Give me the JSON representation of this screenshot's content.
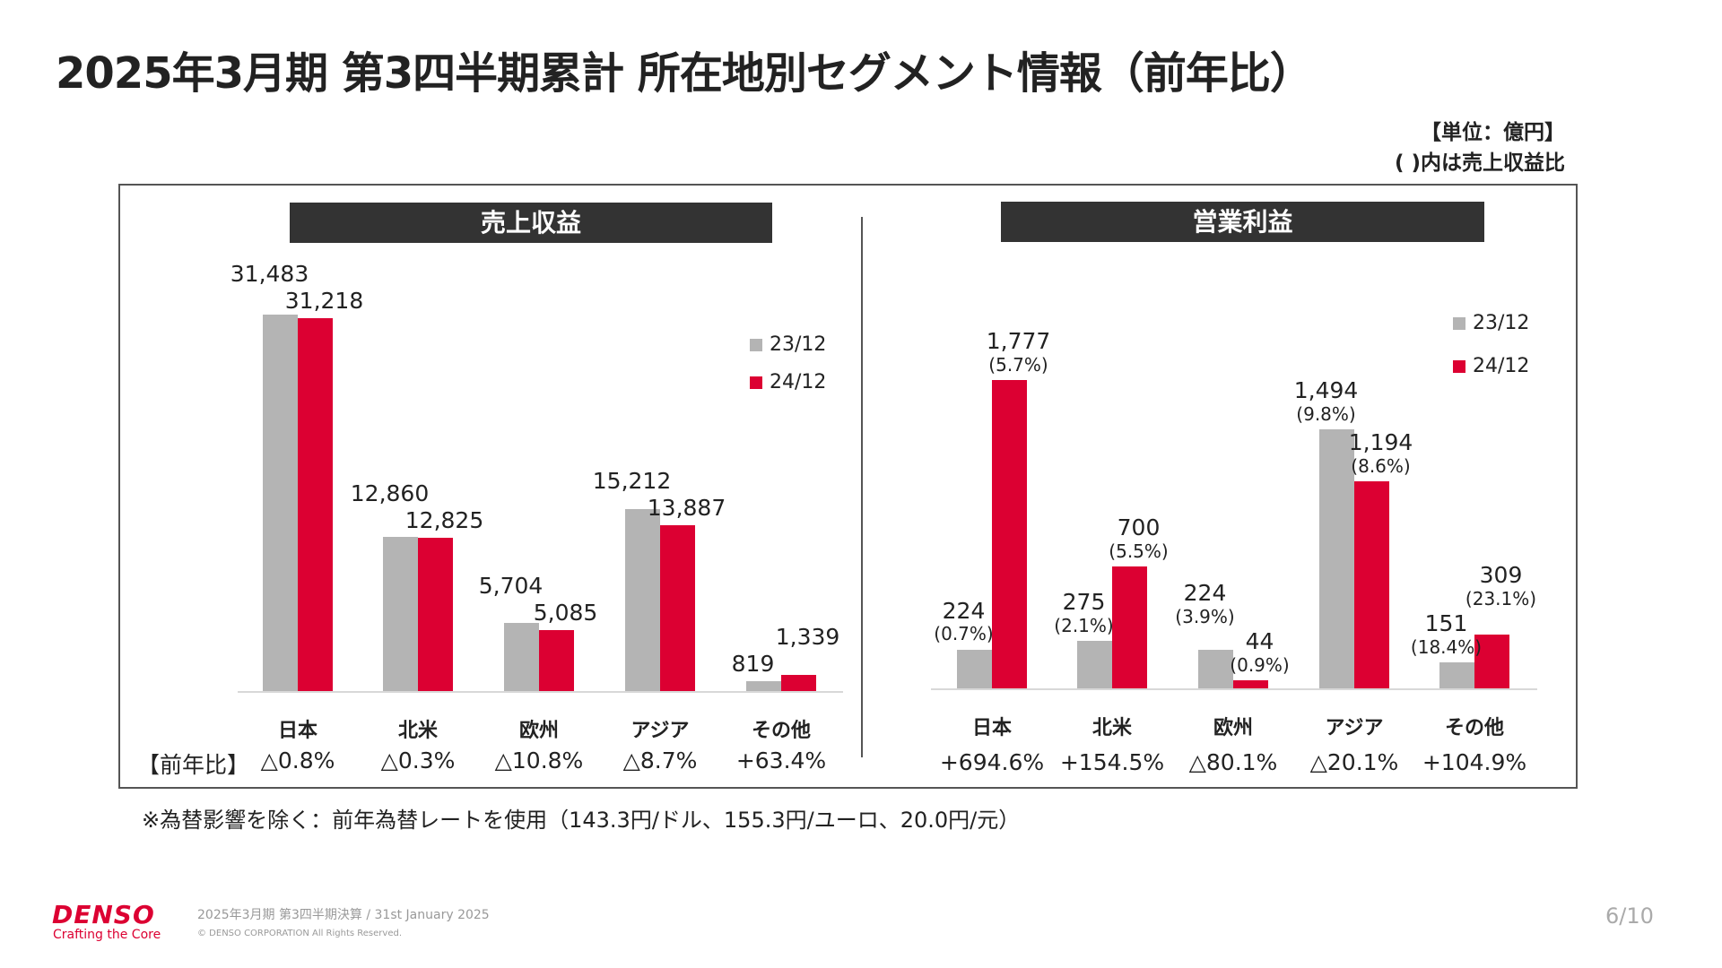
{
  "title": "2025年3月期 第3四半期累計 所在地別セグメント情報（前年比）",
  "unit_line1": "【単位：億円】",
  "unit_line2": "( )内は売上収益比",
  "colors": {
    "prev": "#b4b4b4",
    "curr": "#dc0032",
    "header_bg": "#333333"
  },
  "yoy_prefix": "【前年比】",
  "chart_data": [
    {
      "type": "bar",
      "title": "売上収益",
      "categories": [
        "日本",
        "北米",
        "欧州",
        "アジア",
        "その他"
      ],
      "series": [
        {
          "name": "23/12",
          "values": [
            31483,
            12860,
            5704,
            15212,
            819
          ],
          "labels": [
            "31,483",
            "12,860",
            "5,704",
            "15,212",
            "819"
          ]
        },
        {
          "name": "24/12",
          "values": [
            31218,
            12825,
            5085,
            13887,
            1339
          ],
          "labels": [
            "31,218",
            "12,825",
            "5,085",
            "13,887",
            "1,339"
          ]
        }
      ],
      "yoy": [
        "△0.8%",
        "△0.3%",
        "△10.8%",
        "△8.7%",
        "+63.4%"
      ],
      "legend": "top-right"
    },
    {
      "type": "bar",
      "title": "営業利益",
      "categories": [
        "日本",
        "北米",
        "欧州",
        "アジア",
        "その他"
      ],
      "series": [
        {
          "name": "23/12",
          "values": [
            224,
            275,
            224,
            1494,
            151
          ],
          "labels": [
            "224",
            "275",
            "224",
            "1,494",
            "151"
          ],
          "ratios": [
            "(0.7%)",
            "(2.1%)",
            "(3.9%)",
            "(9.8%)",
            "(18.4%)"
          ]
        },
        {
          "name": "24/12",
          "values": [
            1777,
            700,
            44,
            1194,
            309
          ],
          "labels": [
            "1,777",
            "700",
            "44",
            "1,194",
            "309"
          ],
          "ratios": [
            "(5.7%)",
            "(5.5%)",
            "(0.9%)",
            "(8.6%)",
            "(23.1%)"
          ]
        }
      ],
      "yoy": [
        "+694.6%",
        "+154.5%",
        "△80.1%",
        "△20.1%",
        "+104.9%"
      ],
      "legend": "top-right"
    }
  ],
  "note": "※為替影響を除く：前年為替レートを使用（143.3円/ドル、155.3円/ユーロ、20.0円/元）",
  "footer": {
    "logo": "DENSO",
    "tagline": "Crafting the Core",
    "event": "2025年3月期 第3四半期決算 / 31st January 2025",
    "copyright": "© DENSO CORPORATION All Rights Reserved.",
    "page": "6/10"
  }
}
